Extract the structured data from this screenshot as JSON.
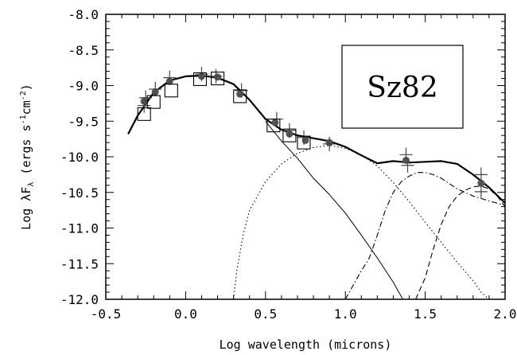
{
  "chart_data": {
    "type": "scatter",
    "title": "",
    "inset_label": "Sz82",
    "xlabel": "Log wavelength (microns)",
    "ylabel_prefix": "Log λF",
    "ylabel_sub": "λ",
    "ylabel_units_open": " (ergs s",
    "ylabel_sup1": "-1",
    "ylabel_mid": "cm",
    "ylabel_sup2": "-2",
    "ylabel_close": ")",
    "xlim": [
      -0.5,
      2.0
    ],
    "ylim": [
      -12.0,
      -8.0
    ],
    "xticks": [
      -0.5,
      0.0,
      0.5,
      1.0,
      1.5,
      2.0
    ],
    "xtick_labels": [
      "-0.5",
      "0.0",
      "0.5",
      "1.0",
      "1.5",
      "2.0"
    ],
    "yticks": [
      -8.0,
      -8.5,
      -9.0,
      -9.5,
      -10.0,
      -10.5,
      -11.0,
      -11.5,
      -12.0
    ],
    "ytick_labels": [
      "-8.0",
      "-8.5",
      "-9.0",
      "-9.5",
      "-10.0",
      "-10.5",
      "-11.0",
      "-11.5",
      "-12.0"
    ],
    "grid": false,
    "legend": "none",
    "series": [
      {
        "style": "filled-circle",
        "points": [
          [
            -0.26,
            -9.22
          ],
          [
            -0.19,
            -9.09
          ],
          [
            -0.1,
            -8.94
          ],
          [
            0.1,
            -8.87
          ],
          [
            0.2,
            -8.88
          ],
          [
            0.34,
            -9.12
          ],
          [
            0.56,
            -9.52
          ],
          [
            0.65,
            -9.68
          ],
          [
            0.75,
            -9.77
          ],
          [
            0.9,
            -9.8
          ],
          [
            1.38,
            -10.05
          ],
          [
            1.85,
            -10.37
          ]
        ]
      },
      {
        "style": "plus",
        "points": [
          [
            -0.26,
            -9.28
          ],
          [
            -0.25,
            -9.17
          ],
          [
            -0.19,
            -9.05
          ],
          [
            -0.1,
            -8.89
          ],
          [
            0.1,
            -8.84
          ],
          [
            0.19,
            -8.87
          ],
          [
            0.35,
            -9.07
          ],
          [
            0.57,
            -9.47
          ],
          [
            0.65,
            -9.63
          ],
          [
            0.74,
            -9.73
          ],
          [
            0.9,
            -9.82
          ],
          [
            1.38,
            -9.97
          ],
          [
            1.39,
            -10.12
          ],
          [
            1.85,
            -10.25
          ],
          [
            1.85,
            -10.49
          ]
        ]
      },
      {
        "style": "open-square",
        "points": [
          [
            -0.26,
            -9.4
          ],
          [
            -0.2,
            -9.23
          ],
          [
            -0.09,
            -9.07
          ],
          [
            0.09,
            -8.91
          ],
          [
            0.2,
            -8.9
          ],
          [
            0.34,
            -9.15
          ],
          [
            0.55,
            -9.56
          ],
          [
            0.65,
            -9.7
          ],
          [
            0.74,
            -9.8
          ]
        ]
      },
      {
        "style": "thick-solid",
        "points": [
          [
            -0.36,
            -9.68
          ],
          [
            -0.3,
            -9.42
          ],
          [
            -0.2,
            -9.1
          ],
          [
            -0.1,
            -8.93
          ],
          [
            0.0,
            -8.87
          ],
          [
            0.1,
            -8.86
          ],
          [
            0.2,
            -8.89
          ],
          [
            0.3,
            -8.98
          ],
          [
            0.4,
            -9.2
          ],
          [
            0.5,
            -9.47
          ],
          [
            0.6,
            -9.62
          ],
          [
            0.7,
            -9.7
          ],
          [
            0.8,
            -9.74
          ],
          [
            0.9,
            -9.78
          ],
          [
            1.0,
            -9.86
          ],
          [
            1.1,
            -9.98
          ],
          [
            1.2,
            -10.09
          ],
          [
            1.3,
            -10.06
          ],
          [
            1.4,
            -10.08
          ],
          [
            1.5,
            -10.07
          ],
          [
            1.6,
            -10.06
          ],
          [
            1.7,
            -10.1
          ],
          [
            1.8,
            -10.25
          ],
          [
            1.9,
            -10.43
          ],
          [
            2.0,
            -10.65
          ]
        ]
      },
      {
        "style": "thin-solid",
        "points": [
          [
            0.5,
            -9.5
          ],
          [
            0.6,
            -9.78
          ],
          [
            0.7,
            -10.02
          ],
          [
            0.8,
            -10.3
          ],
          [
            0.9,
            -10.53
          ],
          [
            1.0,
            -10.79
          ],
          [
            1.1,
            -11.1
          ],
          [
            1.2,
            -11.42
          ],
          [
            1.3,
            -11.76
          ],
          [
            1.36,
            -12.0
          ]
        ]
      },
      {
        "style": "dotted",
        "points": [
          [
            0.3,
            -12.0
          ],
          [
            0.32,
            -11.6
          ],
          [
            0.36,
            -11.1
          ],
          [
            0.4,
            -10.75
          ],
          [
            0.5,
            -10.35
          ],
          [
            0.6,
            -10.1
          ],
          [
            0.7,
            -9.95
          ],
          [
            0.8,
            -9.87
          ],
          [
            0.9,
            -9.84
          ],
          [
            1.0,
            -9.88
          ],
          [
            1.1,
            -9.97
          ],
          [
            1.2,
            -10.13
          ],
          [
            1.3,
            -10.36
          ],
          [
            1.4,
            -10.63
          ],
          [
            1.5,
            -10.92
          ],
          [
            1.6,
            -11.2
          ],
          [
            1.7,
            -11.48
          ],
          [
            1.8,
            -11.74
          ],
          [
            1.85,
            -11.9
          ],
          [
            1.9,
            -12.0
          ]
        ]
      },
      {
        "style": "dash-dot",
        "points": [
          [
            1.0,
            -12.0
          ],
          [
            1.05,
            -11.8
          ],
          [
            1.1,
            -11.6
          ],
          [
            1.15,
            -11.42
          ],
          [
            1.2,
            -11.1
          ],
          [
            1.25,
            -10.75
          ],
          [
            1.3,
            -10.5
          ],
          [
            1.35,
            -10.35
          ],
          [
            1.4,
            -10.27
          ],
          [
            1.45,
            -10.22
          ],
          [
            1.5,
            -10.22
          ],
          [
            1.55,
            -10.25
          ],
          [
            1.6,
            -10.3
          ],
          [
            1.7,
            -10.45
          ],
          [
            1.8,
            -10.55
          ],
          [
            1.9,
            -10.62
          ],
          [
            2.0,
            -10.68
          ]
        ]
      },
      {
        "style": "dashed",
        "points": [
          [
            1.44,
            -12.0
          ],
          [
            1.5,
            -11.7
          ],
          [
            1.55,
            -11.3
          ],
          [
            1.6,
            -10.95
          ],
          [
            1.65,
            -10.7
          ],
          [
            1.7,
            -10.55
          ],
          [
            1.75,
            -10.47
          ],
          [
            1.8,
            -10.42
          ],
          [
            1.85,
            -10.41
          ],
          [
            1.9,
            -10.45
          ],
          [
            1.95,
            -10.55
          ],
          [
            2.0,
            -10.7
          ]
        ]
      }
    ]
  }
}
